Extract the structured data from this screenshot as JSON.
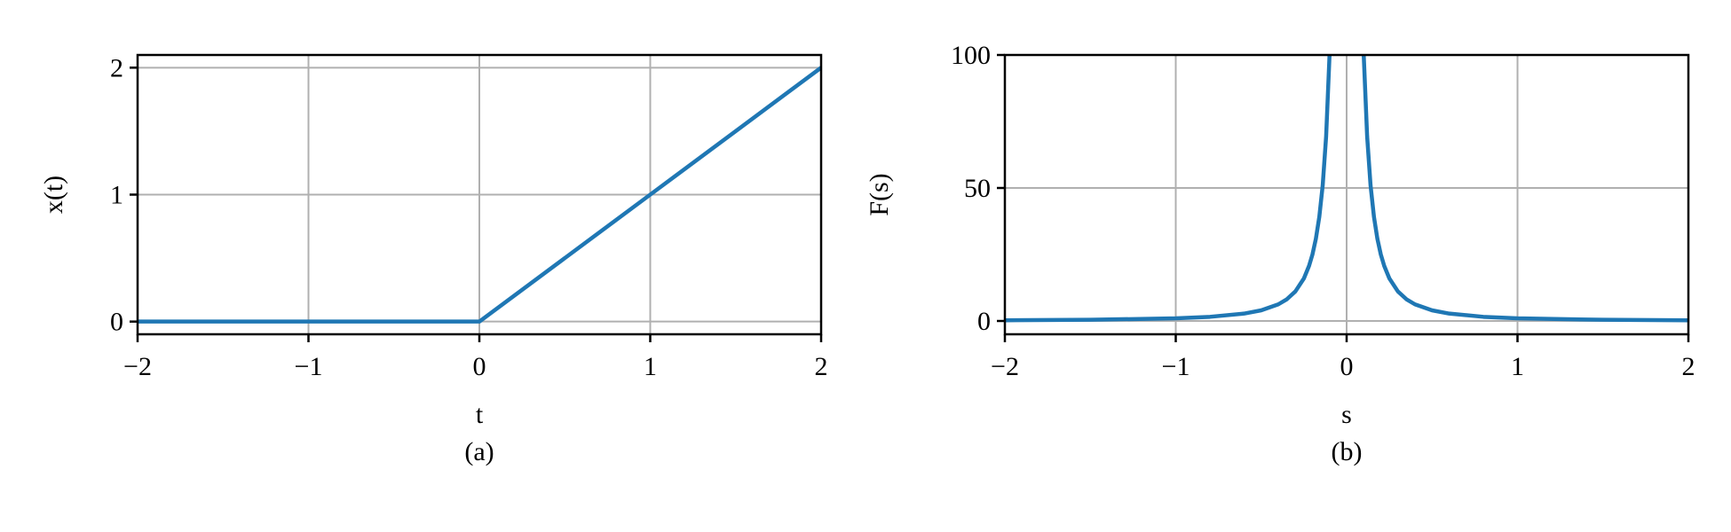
{
  "chart_data": [
    {
      "type": "line",
      "panel_label": "(a)",
      "xlabel": "t",
      "ylabel": "x(t)",
      "xlim": [
        -2,
        2
      ],
      "ylim": [
        -0.1,
        2.1
      ],
      "xticks": [
        -2,
        -1,
        0,
        1,
        2
      ],
      "xtick_labels": [
        "−2",
        "−1",
        "0",
        "1",
        "2"
      ],
      "yticks": [
        0,
        1,
        2
      ],
      "ytick_labels": [
        "0",
        "1",
        "2"
      ],
      "grid": true,
      "color": "#1f77b4",
      "series": [
        {
          "x": [
            -2,
            -1.5,
            -1,
            -0.5,
            0,
            0.5,
            1,
            1.5,
            2
          ],
          "y": [
            0,
            0,
            0,
            0,
            0,
            0.5,
            1,
            1.5,
            2
          ]
        }
      ]
    },
    {
      "type": "line",
      "panel_label": "(b)",
      "xlabel": "s",
      "ylabel": "F(s)",
      "xlim": [
        -2,
        2
      ],
      "ylim": [
        -5,
        100
      ],
      "xticks": [
        -2,
        -1,
        0,
        1,
        2
      ],
      "xtick_labels": [
        "−2",
        "−1",
        "0",
        "1",
        "2"
      ],
      "yticks": [
        0,
        50,
        100
      ],
      "ytick_labels": [
        "0",
        "50",
        "100"
      ],
      "grid": true,
      "color": "#1f77b4",
      "series": [
        {
          "x": [
            -2,
            -1.5,
            -1,
            -0.8,
            -0.6,
            -0.5,
            -0.4,
            -0.35,
            -0.3,
            -0.25,
            -0.22,
            -0.2,
            -0.18,
            -0.16,
            -0.14,
            -0.12,
            -0.1,
            -0.09
          ],
          "y": [
            0.25,
            0.44,
            1,
            1.56,
            2.78,
            4,
            6.25,
            8.16,
            11.1,
            16,
            20.7,
            25,
            30.9,
            39.1,
            51,
            69.4,
            100,
            123
          ]
        },
        {
          "x": [
            0.09,
            0.1,
            0.12,
            0.14,
            0.16,
            0.18,
            0.2,
            0.22,
            0.25,
            0.3,
            0.35,
            0.4,
            0.5,
            0.6,
            0.8,
            1,
            1.5,
            2
          ],
          "y": [
            123,
            100,
            69.4,
            51,
            39.1,
            30.9,
            25,
            20.7,
            16,
            11.1,
            8.16,
            6.25,
            4,
            2.78,
            1.56,
            1,
            0.44,
            0.25
          ]
        }
      ]
    }
  ]
}
